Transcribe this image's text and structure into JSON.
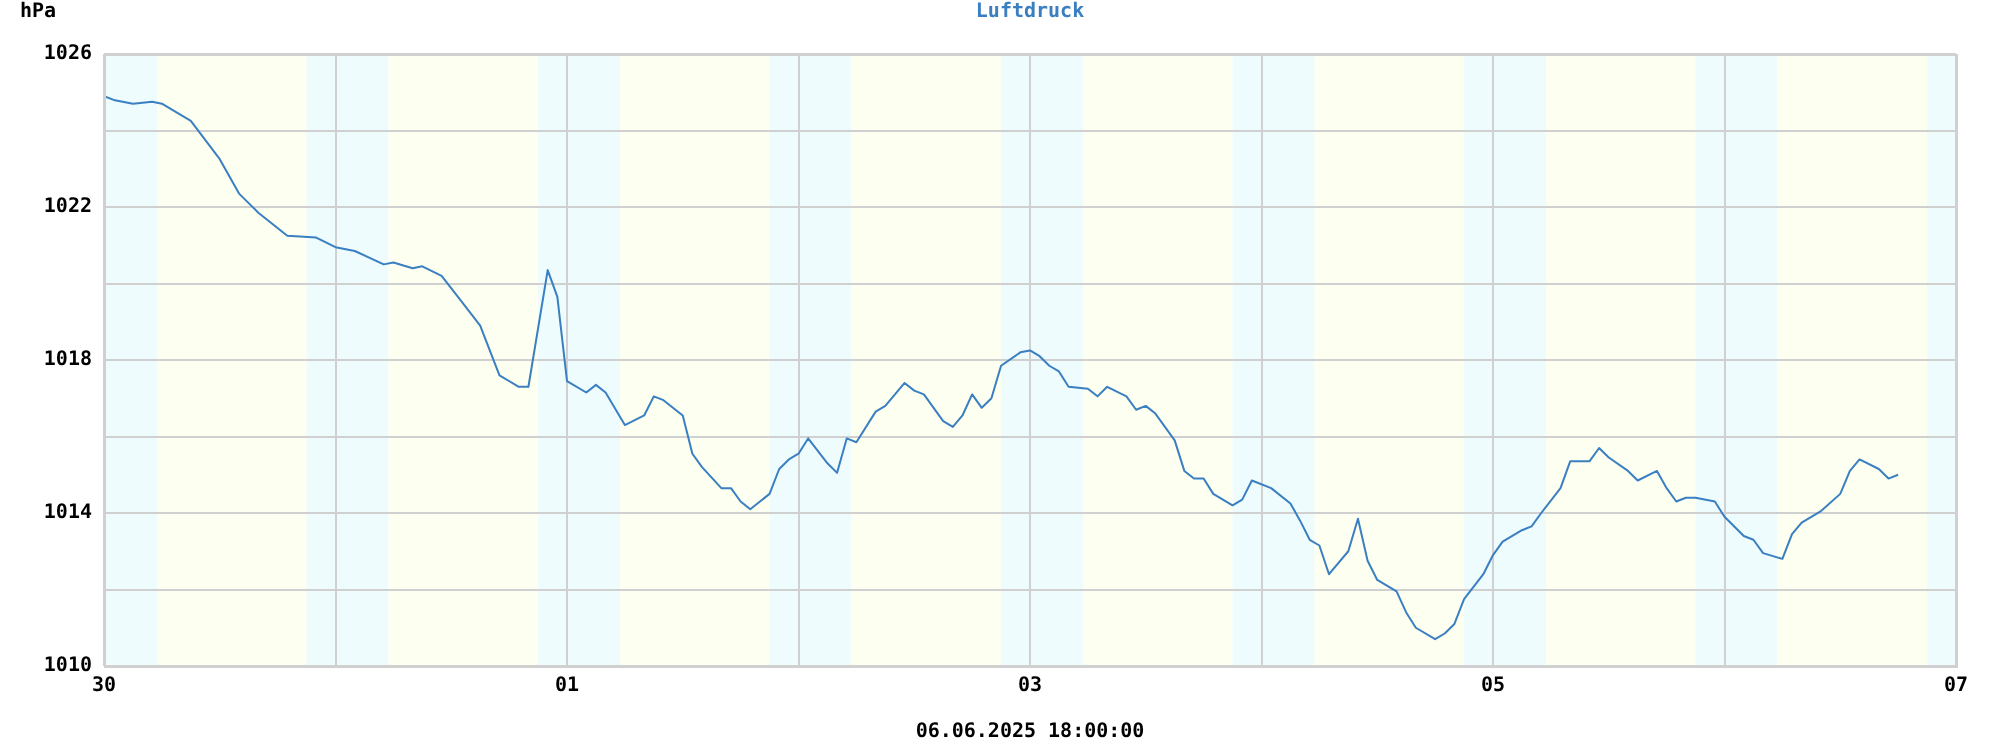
{
  "chart_data": {
    "type": "line",
    "title": "Luftdruck",
    "ylabel": "hPa",
    "annotations": [
      "06.06.2025 18:00:00"
    ],
    "xlim": [
      "2025-05-30T00:00",
      "2025-06-07T00:00"
    ],
    "ylim": [
      1010,
      1026
    ],
    "xticks": [
      {
        "value": "2025-05-30T00:00",
        "label": "30"
      },
      {
        "value": "2025-05-31T00:00",
        "label": null
      },
      {
        "value": "2025-06-01T00:00",
        "label": "01"
      },
      {
        "value": "2025-06-02T00:00",
        "label": null
      },
      {
        "value": "2025-06-03T00:00",
        "label": "03"
      },
      {
        "value": "2025-06-04T00:00",
        "label": null
      },
      {
        "value": "2025-06-05T00:00",
        "label": "05"
      },
      {
        "value": "2025-06-06T00:00",
        "label": null
      },
      {
        "value": "2025-06-07T00:00",
        "label": "07"
      }
    ],
    "yticks": [
      1010,
      {
        "value": 1012,
        "label": null
      },
      1014,
      {
        "value": 1016,
        "label": null
      },
      1018,
      {
        "value": 1020,
        "label": null
      },
      1022,
      {
        "value": 1024,
        "label": null
      },
      1026
    ],
    "grid": true,
    "marker": "none",
    "bands": [
      {
        "axis": "x",
        "from": "2025-05-30T00:00",
        "to": "2025-05-30T05:30",
        "color": "#eefcfd"
      },
      {
        "axis": "x",
        "from": "2025-05-30T05:30",
        "to": "2025-05-30T21:00",
        "color": "#fdfff0"
      },
      {
        "axis": "x",
        "from": "2025-05-30T21:00",
        "to": "2025-05-31T05:30",
        "color": "#eefcfd"
      },
      {
        "axis": "x",
        "from": "2025-05-31T05:30",
        "to": "2025-05-31T21:00",
        "color": "#fdfff0"
      },
      {
        "axis": "x",
        "from": "2025-05-31T21:00",
        "to": "2025-06-01T05:30",
        "color": "#eefcfd"
      },
      {
        "axis": "x",
        "from": "2025-06-01T05:30",
        "to": "2025-06-01T21:00",
        "color": "#fdfff0"
      },
      {
        "axis": "x",
        "from": "2025-06-01T21:00",
        "to": "2025-06-02T05:30",
        "color": "#eefcfd"
      },
      {
        "axis": "x",
        "from": "2025-06-02T05:30",
        "to": "2025-06-02T21:00",
        "color": "#fdfff0"
      },
      {
        "axis": "x",
        "from": "2025-06-02T21:00",
        "to": "2025-06-03T05:30",
        "color": "#eefcfd"
      },
      {
        "axis": "x",
        "from": "2025-06-03T05:30",
        "to": "2025-06-03T21:00",
        "color": "#fdfff0"
      },
      {
        "axis": "x",
        "from": "2025-06-03T21:00",
        "to": "2025-06-04T05:30",
        "color": "#eefcfd"
      },
      {
        "axis": "x",
        "from": "2025-06-04T05:30",
        "to": "2025-06-04T21:00",
        "color": "#fdfff0"
      },
      {
        "axis": "x",
        "from": "2025-06-04T21:00",
        "to": "2025-06-05T05:30",
        "color": "#eefcfd"
      },
      {
        "axis": "x",
        "from": "2025-06-05T05:30",
        "to": "2025-06-05T21:00",
        "color": "#fdfff0"
      },
      {
        "axis": "x",
        "from": "2025-06-05T21:00",
        "to": "2025-06-06T05:30",
        "color": "#eefcfd"
      },
      {
        "axis": "x",
        "from": "2025-06-06T05:30",
        "to": "2025-06-06T21:00",
        "color": "#fdfff0"
      },
      {
        "axis": "x",
        "from": "2025-06-06T21:00",
        "to": "2025-06-07T00:00",
        "color": "#eefcfd"
      }
    ],
    "x": [
      "2025-05-30T00:00",
      "2025-05-30T01:00",
      "2025-05-30T03:00",
      "2025-05-30T05:00",
      "2025-05-30T06:00",
      "2025-05-30T09:00",
      "2025-05-30T12:00",
      "2025-05-30T14:00",
      "2025-05-30T16:00",
      "2025-05-30T19:00",
      "2025-05-30T22:00",
      "2025-05-31T00:00",
      "2025-05-31T02:00",
      "2025-05-31T05:00",
      "2025-05-31T06:00",
      "2025-05-31T08:00",
      "2025-05-31T09:00",
      "2025-05-31T11:00",
      "2025-05-31T13:00",
      "2025-05-31T15:00",
      "2025-05-31T17:00",
      "2025-05-31T19:00",
      "2025-05-31T20:00",
      "2025-05-31T22:00",
      "2025-05-31T23:00",
      "2025-06-01T00:00",
      "2025-06-01T02:00",
      "2025-06-01T03:00",
      "2025-06-01T04:00",
      "2025-06-01T06:00",
      "2025-06-01T08:00",
      "2025-06-01T09:00",
      "2025-06-01T10:00",
      "2025-06-01T12:00",
      "2025-06-01T13:00",
      "2025-06-01T14:00",
      "2025-06-01T16:00",
      "2025-06-01T17:00",
      "2025-06-01T18:00",
      "2025-06-01T19:00",
      "2025-06-01T21:00",
      "2025-06-01T22:00",
      "2025-06-01T23:00",
      "2025-06-02T00:00",
      "2025-06-02T01:00",
      "2025-06-02T03:00",
      "2025-06-02T04:00",
      "2025-06-02T05:00",
      "2025-06-02T06:00",
      "2025-06-02T08:00",
      "2025-06-02T09:00",
      "2025-06-02T11:00",
      "2025-06-02T12:00",
      "2025-06-02T13:00",
      "2025-06-02T15:00",
      "2025-06-02T16:00",
      "2025-06-02T17:00",
      "2025-06-02T18:00",
      "2025-06-02T19:00",
      "2025-06-02T20:00",
      "2025-06-02T21:00",
      "2025-06-02T23:00",
      "2025-06-03T00:00",
      "2025-06-03T01:00",
      "2025-06-03T02:00",
      "2025-06-03T03:00",
      "2025-06-03T04:00",
      "2025-06-03T06:00",
      "2025-06-03T07:00",
      "2025-06-03T08:00",
      "2025-06-03T10:00",
      "2025-06-03T11:00",
      "2025-06-03T12:00",
      "2025-06-03T13:00",
      "2025-06-03T15:00",
      "2025-06-03T16:00",
      "2025-06-03T17:00",
      "2025-06-03T18:00",
      "2025-06-03T19:00",
      "2025-06-03T21:00",
      "2025-06-03T22:00",
      "2025-06-03T23:00",
      "2025-06-04T01:00",
      "2025-06-04T03:00",
      "2025-06-04T04:00",
      "2025-06-04T05:00",
      "2025-06-04T06:00",
      "2025-06-04T07:00",
      "2025-06-04T09:00",
      "2025-06-04T10:00",
      "2025-06-04T11:00",
      "2025-06-04T12:00",
      "2025-06-04T14:00",
      "2025-06-04T15:00",
      "2025-06-04T16:00",
      "2025-06-04T18:00",
      "2025-06-04T19:00",
      "2025-06-04T20:00",
      "2025-06-04T21:00",
      "2025-06-04T23:00",
      "2025-06-05T00:00",
      "2025-06-05T01:00",
      "2025-06-05T03:00",
      "2025-06-05T04:00",
      "2025-06-05T05:00",
      "2025-06-05T07:00",
      "2025-06-05T08:00",
      "2025-06-05T10:00",
      "2025-06-05T11:00",
      "2025-06-05T12:00",
      "2025-06-05T14:00",
      "2025-06-05T15:00",
      "2025-06-05T17:00",
      "2025-06-05T18:00",
      "2025-06-05T19:00",
      "2025-06-05T20:00",
      "2025-06-05T21:00",
      "2025-06-05T23:00",
      "2025-06-06T00:00",
      "2025-06-06T02:00",
      "2025-06-06T03:00",
      "2025-06-06T04:00",
      "2025-06-06T06:00",
      "2025-06-06T07:00",
      "2025-06-06T08:00",
      "2025-06-06T10:00",
      "2025-06-06T12:00",
      "2025-06-06T13:00",
      "2025-06-06T14:00",
      "2025-06-06T16:00",
      "2025-06-06T17:00",
      "2025-06-06T18:00"
    ],
    "series": [
      {
        "color": "#3a7fc1",
        "values": [
          1024.9,
          1024.8,
          1024.7,
          1024.75,
          1024.7,
          1024.25,
          1023.25,
          1022.35,
          1021.85,
          1021.25,
          1021.2,
          1020.95,
          1020.85,
          1020.5,
          1020.55,
          1020.4,
          1020.45,
          1020.2,
          1019.55,
          1018.9,
          1017.6,
          1017.3,
          1017.3,
          1020.35,
          1019.65,
          1017.45,
          1017.15,
          1017.35,
          1017.15,
          1016.3,
          1016.55,
          1017.05,
          1016.95,
          1016.55,
          1015.55,
          1015.2,
          1014.65,
          1014.65,
          1014.3,
          1014.1,
          1014.5,
          1015.15,
          1015.4,
          1015.55,
          1015.95,
          1015.3,
          1015.05,
          1015.95,
          1015.85,
          1016.65,
          1016.8,
          1017.4,
          1017.2,
          1017.1,
          1016.4,
          1016.25,
          1016.55,
          1017.1,
          1016.75,
          1017.0,
          1017.85,
          1018.2,
          1018.25,
          1018.1,
          1017.85,
          1017.7,
          1017.3,
          1017.25,
          1017.05,
          1017.3,
          1017.05,
          1016.7,
          1016.8,
          1016.6,
          1015.9,
          1015.1,
          1014.9,
          1014.9,
          1014.5,
          1014.2,
          1014.35,
          1014.85,
          1014.65,
          1014.25,
          1013.8,
          1013.3,
          1013.15,
          1012.4,
          1013.0,
          1013.85,
          1012.75,
          1012.25,
          1011.95,
          1011.4,
          1011.0,
          1010.7,
          1010.85,
          1011.1,
          1011.75,
          1012.4,
          1012.9,
          1013.25,
          1013.55,
          1013.65,
          1014.0,
          1014.65,
          1015.35,
          1015.35,
          1015.7,
          1015.45,
          1015.1,
          1014.85,
          1015.1,
          1014.65,
          1014.3,
          1014.4,
          1014.4,
          1014.3,
          1013.9,
          1013.4,
          1013.3,
          1012.95,
          1012.8,
          1013.45,
          1013.75,
          1014.05,
          1014.5,
          1015.1,
          1015.4,
          1015.15,
          1014.9,
          1015.0
        ]
      }
    ]
  }
}
